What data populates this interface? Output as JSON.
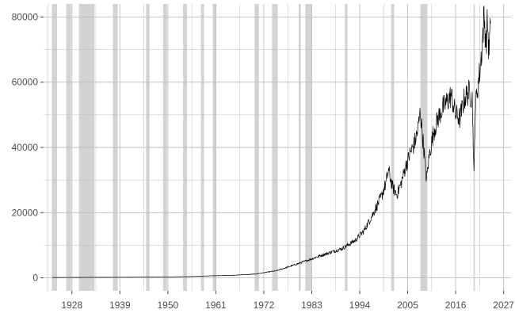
{
  "chart_data": {
    "type": "line",
    "title": "",
    "xlabel": "",
    "ylabel": "",
    "xlim": [
      1921.5,
      2028.7
    ],
    "ylim": [
      -4000,
      84000
    ],
    "x_ticks": [
      1928,
      1939,
      1950,
      1961,
      1972,
      1983,
      1994,
      2005,
      2016,
      2027
    ],
    "y_ticks": [
      0,
      20000,
      40000,
      60000,
      80000
    ],
    "y_tick_labels": [
      "0",
      "20000",
      "40000",
      "60000",
      "80000"
    ],
    "grid": true,
    "legend": "none",
    "colors": {
      "line": "#000000",
      "shade": "#d3d3d3",
      "grid": "#bebebe",
      "tick_text": "#4d4d4d"
    },
    "shaded_periods": [
      [
        1923.4,
        1924.6
      ],
      [
        1926.7,
        1927.8
      ],
      [
        1929.6,
        1933.2
      ],
      [
        1937.4,
        1938.5
      ],
      [
        1945.0,
        1945.8
      ],
      [
        1948.9,
        1949.8
      ],
      [
        1953.5,
        1954.4
      ],
      [
        1957.6,
        1958.3
      ],
      [
        1960.3,
        1961.1
      ],
      [
        1969.9,
        1970.9
      ],
      [
        1973.9,
        1975.2
      ],
      [
        1980.0,
        1980.5
      ],
      [
        1981.5,
        1982.9
      ],
      [
        1990.6,
        1991.2
      ],
      [
        2001.2,
        2001.9
      ],
      [
        2007.9,
        2009.5
      ],
      [
        2020.1,
        2020.4
      ]
    ],
    "series": [
      {
        "values": [
          [
            1923.5,
            90
          ],
          [
            1930,
            140
          ],
          [
            1940,
            180
          ],
          [
            1950,
            260
          ],
          [
            1955,
            400
          ],
          [
            1960,
            620
          ],
          [
            1965,
            800
          ],
          [
            1970,
            1150
          ],
          [
            1975,
            2200
          ],
          [
            1980,
            4400
          ],
          [
            1985,
            6800
          ],
          [
            1990,
            9000
          ],
          [
            1993,
            11500
          ],
          [
            1995,
            14500
          ],
          [
            1997,
            19500
          ],
          [
            1999,
            25000
          ],
          [
            2000,
            29000
          ],
          [
            2000.6,
            33000
          ],
          [
            2001.5,
            28000
          ],
          [
            2002.5,
            25500
          ],
          [
            2003.5,
            29000
          ],
          [
            2004.5,
            34000
          ],
          [
            2005.5,
            38000
          ],
          [
            2006.5,
            41000
          ],
          [
            2007.3,
            45000
          ],
          [
            2007.9,
            51000
          ],
          [
            2008.8,
            38000
          ],
          [
            2009.3,
            30000
          ],
          [
            2010,
            38000
          ],
          [
            2011,
            45000
          ],
          [
            2012,
            49000
          ],
          [
            2013,
            52000
          ],
          [
            2014,
            54000
          ],
          [
            2015,
            56000
          ],
          [
            2016,
            50000
          ],
          [
            2017,
            49000
          ],
          [
            2018,
            55000
          ],
          [
            2019,
            57000
          ],
          [
            2019.8,
            55000
          ],
          [
            2020.2,
            31000
          ],
          [
            2020.5,
            52000
          ],
          [
            2021,
            58000
          ],
          [
            2021.5,
            63000
          ],
          [
            2022,
            70000
          ],
          [
            2022.5,
            80000
          ],
          [
            2023,
            72000
          ],
          [
            2023.3,
            79000
          ],
          [
            2023.6,
            69000
          ],
          [
            2024,
            78000
          ]
        ]
      }
    ]
  }
}
